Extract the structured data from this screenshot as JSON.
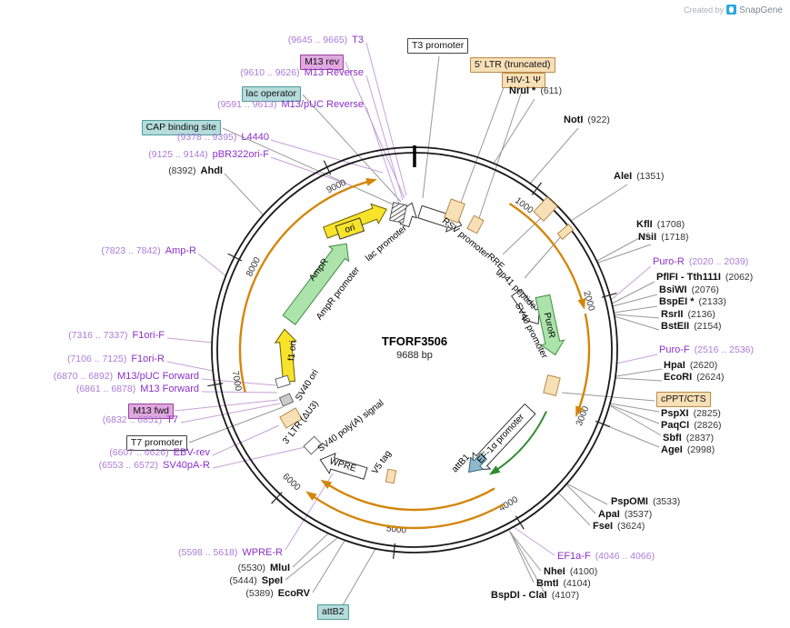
{
  "watermark": {
    "created_by": "Created by",
    "brand": "SnapGene"
  },
  "plasmid": {
    "name": "TFORF3506",
    "size": "9688 bp"
  },
  "colors": {
    "primer": "#8B2FC9",
    "enzyme": "#111111",
    "orf_arc": "#D4860B",
    "cds_green": "#ABE3AB",
    "origin_yellow": "#F7E32A",
    "misc_tan": "#F7DFB6",
    "teal_box": "#B5DBDB",
    "plum_box": "#DFA8DF"
  },
  "ticks": [
    "1000",
    "2000",
    "3000",
    "4000",
    "5000",
    "6000",
    "7000",
    "8000",
    "9000"
  ],
  "inner_labels": [
    "ori",
    "lac promoter",
    "AmpR",
    "AmpR promoter",
    "f1 ori",
    "SV40 ori",
    "RSV promoter",
    "RRE",
    "gp41 peptide",
    "SV40 promoter",
    "PuroR",
    "EF-1α promoter",
    "attB1",
    "V5 tag",
    "WPRE",
    "3' LTR (ΔU3)",
    "SV40 poly(A) signal"
  ],
  "callouts": [
    {
      "pre": "(9645 .. 9665)",
      "name": "T3"
    },
    {
      "name": "M13 rev"
    },
    {
      "pre": "(9610 .. 9626)",
      "name": "M13 Reverse"
    },
    {
      "name": "lac operator"
    },
    {
      "pre": "(9591 .. 9613)",
      "name": "M13/pUC Reverse"
    },
    {
      "name": "CAP binding site"
    },
    {
      "pre": "(9378 .. 9395)",
      "name": "L4440"
    },
    {
      "pre": "(9125 .. 9144)",
      "name": "pBR322ori-F"
    },
    {
      "pre": "(8392)",
      "name": "AhdI"
    },
    {
      "pre": "(7823 .. 7842)",
      "name": "Amp-R"
    },
    {
      "pre": "(7316 .. 7337)",
      "name": "F1ori-F"
    },
    {
      "pre": "(7106 .. 7125)",
      "name": "F1ori-R"
    },
    {
      "pre": "(6870 .. 6892)",
      "name": "M13/pUC Forward"
    },
    {
      "pre": "(6861 .. 6878)",
      "name": "M13 Forward"
    },
    {
      "name": "M13 fwd"
    },
    {
      "pre": "(6832 .. 6851)",
      "name": "T7"
    },
    {
      "name": "T7 promoter"
    },
    {
      "pre": "(6607 .. 6626)",
      "name": "EBV-rev"
    },
    {
      "pre": "(6553 .. 6572)",
      "name": "SV40pA-R"
    },
    {
      "pre": "(5598 .. 5618)",
      "name": "WPRE-R"
    },
    {
      "pre": "(5530)",
      "name": "MluI"
    },
    {
      "pre": "(5444)",
      "name": "SpeI"
    },
    {
      "pre": "(5389)",
      "name": "EcoRV"
    },
    {
      "name": "attB2"
    },
    {
      "name": "T3 promoter"
    },
    {
      "name": "5' LTR (truncated)"
    },
    {
      "name": "HIV-1 Ψ"
    },
    {
      "name": "NruI *",
      "suf": "(611)"
    },
    {
      "name": "NotI",
      "suf": "(922)"
    },
    {
      "name": "AleI",
      "suf": "(1351)"
    },
    {
      "name": "KflI",
      "suf": "(1708)"
    },
    {
      "name": "NsiI",
      "suf": "(1718)"
    },
    {
      "name": "Puro-R",
      "suf": "(2020 .. 2039)"
    },
    {
      "name": "PflFI - Tth111I",
      "suf": "(2062)"
    },
    {
      "name": "BsiWI",
      "suf": "(2076)"
    },
    {
      "name": "BspEI *",
      "suf": "(2133)"
    },
    {
      "name": "RsrII",
      "suf": "(2136)"
    },
    {
      "name": "BstEII",
      "suf": "(2154)"
    },
    {
      "name": "Puro-F",
      "suf": "(2516 .. 2536)"
    },
    {
      "name": "HpaI",
      "suf": "(2620)"
    },
    {
      "name": "EcoRI",
      "suf": "(2624)"
    },
    {
      "name": "cPPT/CTS"
    },
    {
      "name": "PspXI",
      "suf": "(2825)"
    },
    {
      "name": "PaqCI",
      "suf": "(2826)"
    },
    {
      "name": "SbfI",
      "suf": "(2837)"
    },
    {
      "name": "AgeI",
      "suf": "(2998)"
    },
    {
      "name": "PspOMI",
      "suf": "(3533)"
    },
    {
      "name": "ApaI",
      "suf": "(3537)"
    },
    {
      "name": "FseI",
      "suf": "(3624)"
    },
    {
      "name": "EF1a-F",
      "suf": "(4046 .. 4066)"
    },
    {
      "name": "NheI",
      "suf": "(4100)"
    },
    {
      "name": "BmtI",
      "suf": "(4104)"
    },
    {
      "name": "BspDI - ClaI",
      "suf": "(4107)"
    }
  ]
}
